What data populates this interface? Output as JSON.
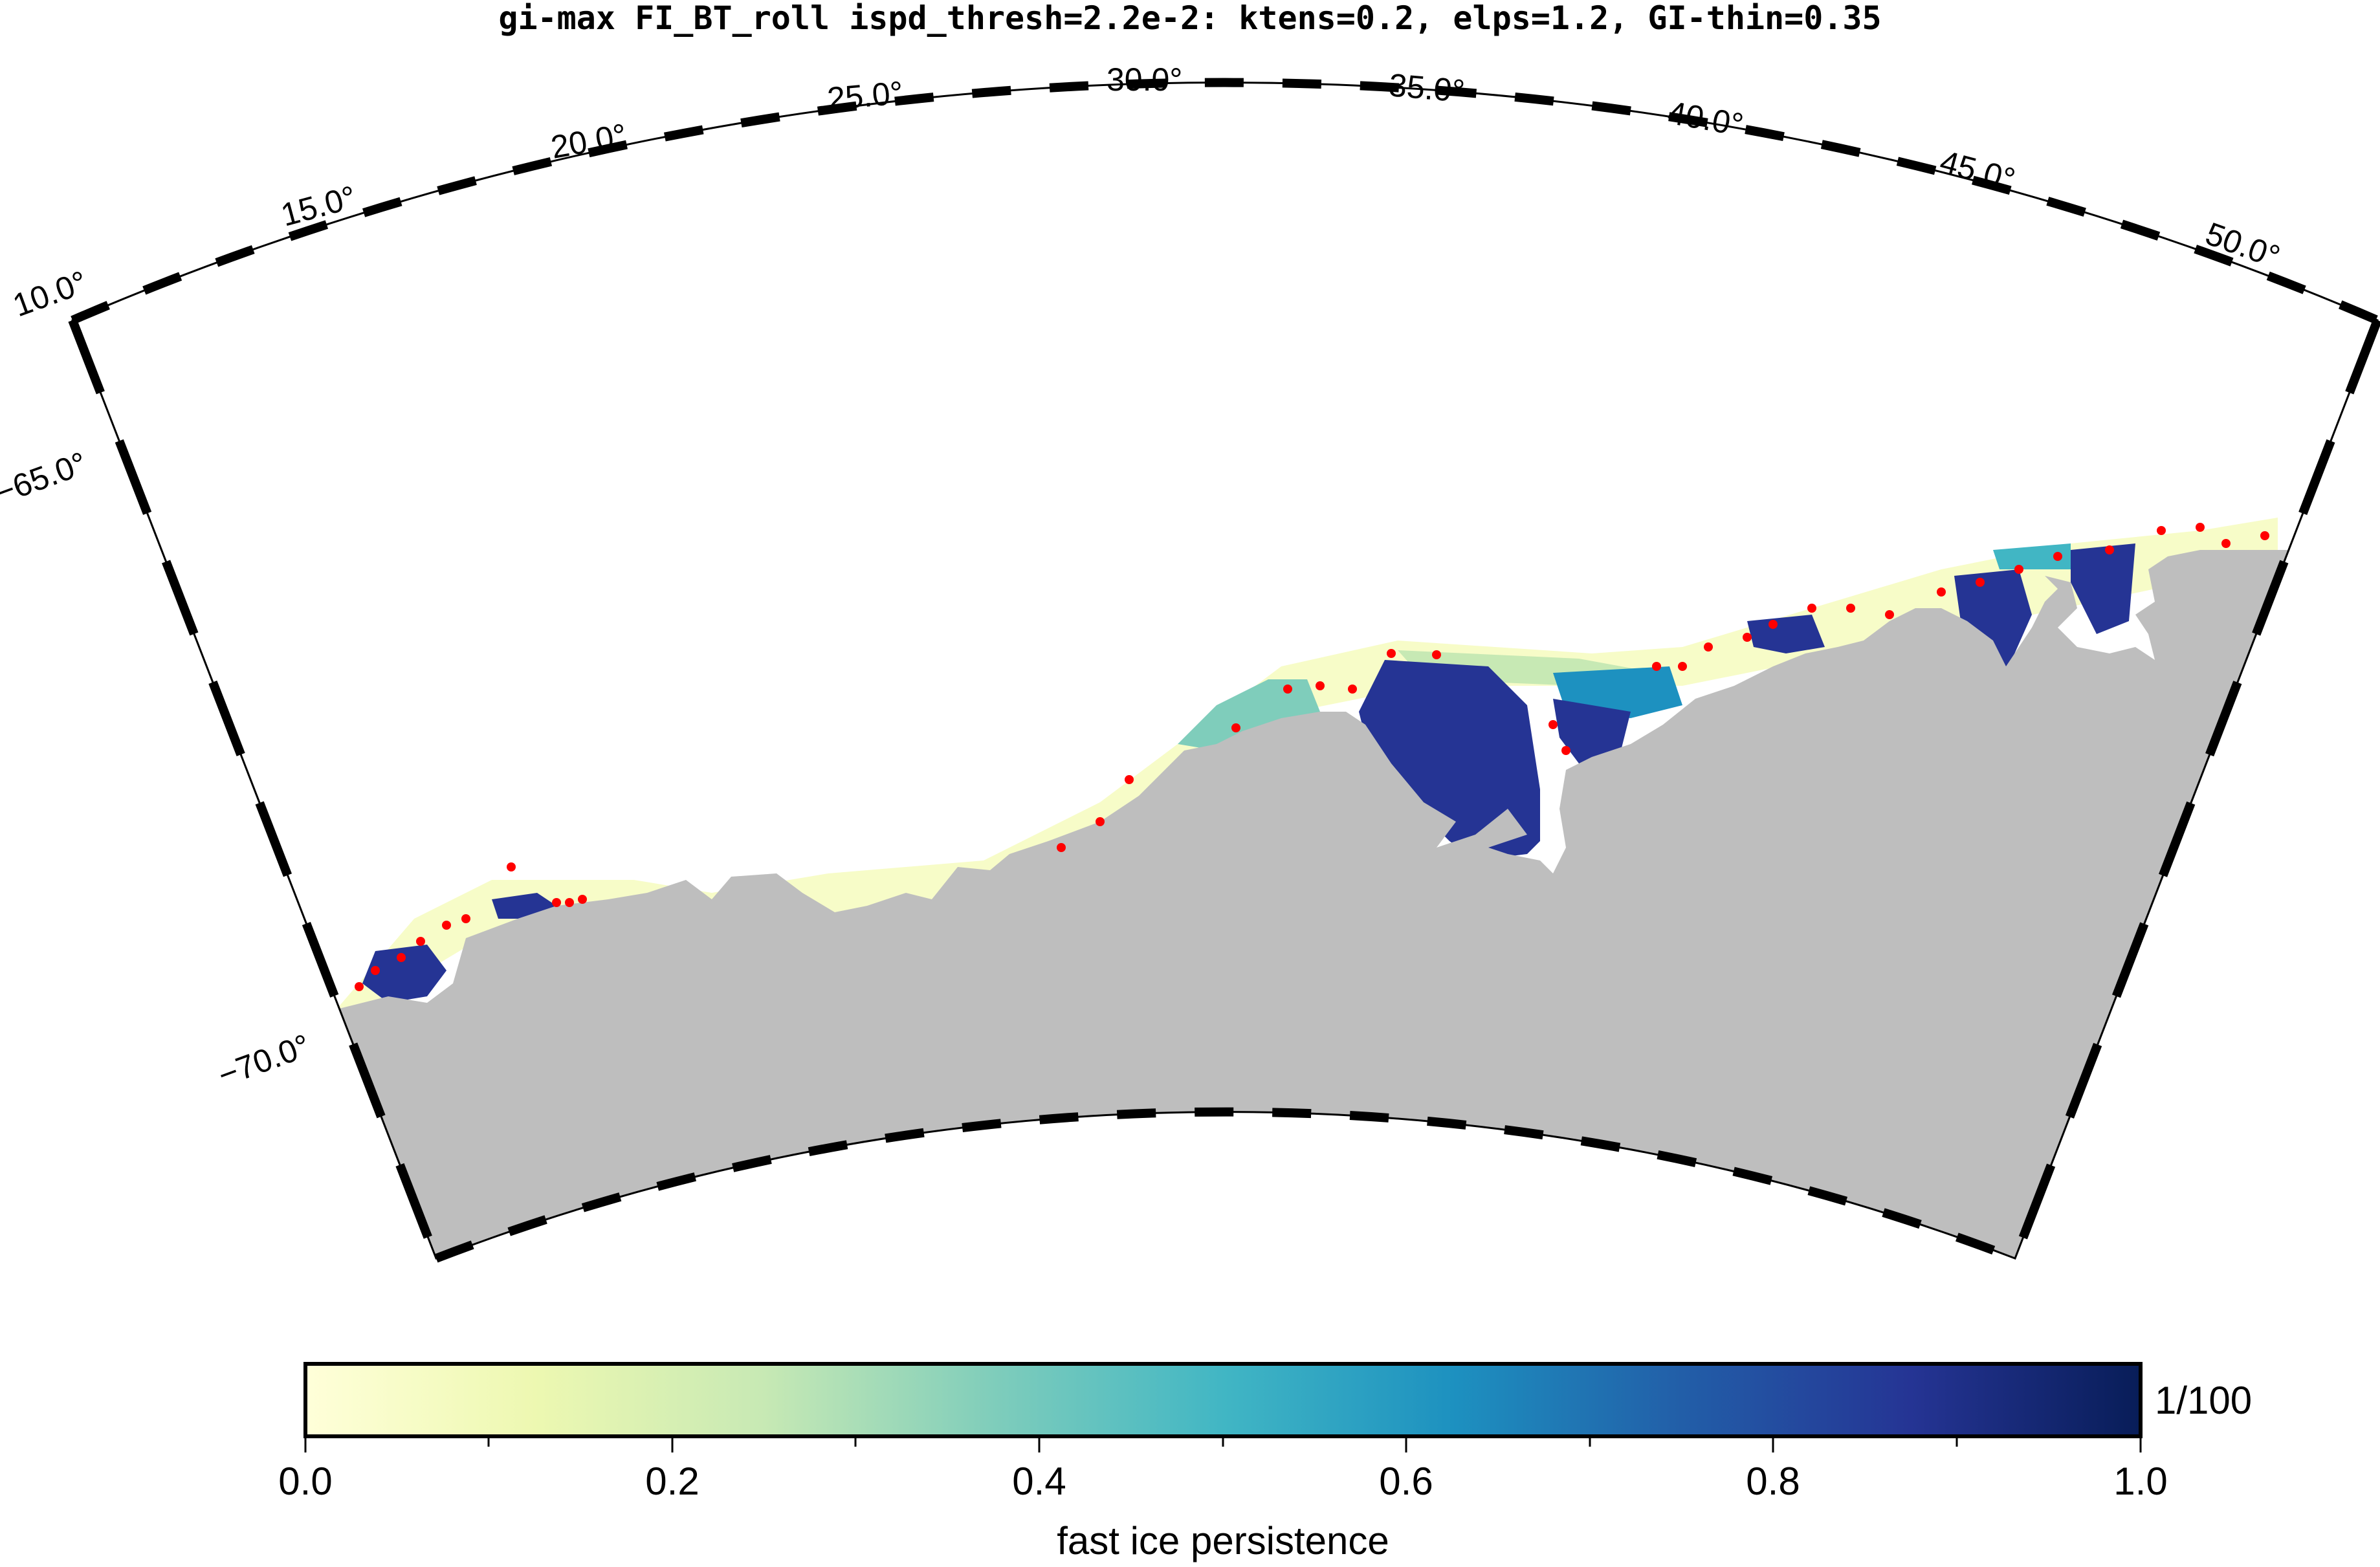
{
  "title": "gi-max FI_BT_roll ispd_thresh=2.2e-2: ktens=0.2, elps=1.2, GI-thin=0.35",
  "lon_labels": [
    "10.0°",
    "15.0°",
    "20.0°",
    "25.0°",
    "30.0°",
    "35.0°",
    "40.0°",
    "45.0°",
    "50.0°"
  ],
  "lat_labels": [
    "−65.0°",
    "−70.0°"
  ],
  "colors": {
    "land": "#bebebe",
    "grounded_iceberg_marker": "#ff0000",
    "ocean": "#ffffff",
    "cmap": [
      "#ffffd9",
      "#edf8b1",
      "#c7e9b4",
      "#7fcdbb",
      "#41b6c4",
      "#1d91c0",
      "#225ea8",
      "#253494",
      "#081d58"
    ]
  },
  "colorbar": {
    "label": "fast ice persistence",
    "ticks": [
      "0.0",
      "0.2",
      "0.4",
      "0.6",
      "0.8",
      "1.0"
    ],
    "range": [
      0,
      1
    ],
    "unit_note": "1/100"
  }
}
